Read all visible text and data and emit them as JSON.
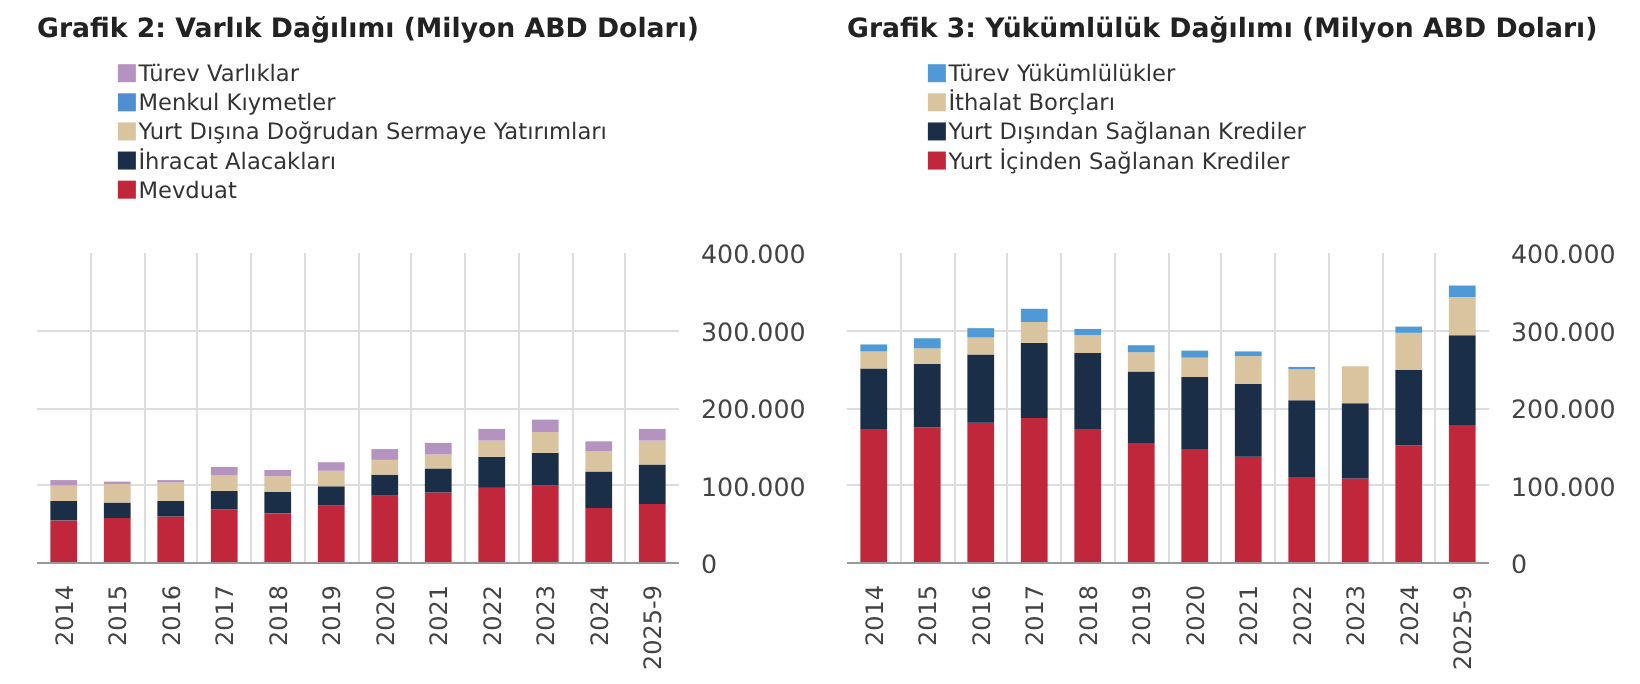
{
  "chart_data": [
    {
      "type": "bar",
      "title": "Grafik 2: Varlık Dağılımı (Milyon ABD Doları)",
      "stacked": true,
      "legend": "top left",
      "grid": true,
      "categories": [
        "2014",
        "2015",
        "2016",
        "2017",
        "2018",
        "2019",
        "2020",
        "2021",
        "2022",
        "2023",
        "2024",
        "2025-9"
      ],
      "ylim": [
        0,
        400000
      ],
      "yticks": [
        {
          "value": 0,
          "label": "0"
        },
        {
          "value": 100000,
          "label": "100.000"
        },
        {
          "value": 200000,
          "label": "200.000"
        },
        {
          "value": 300000,
          "label": "300.000"
        },
        {
          "value": 400000,
          "label": "400.000"
        }
      ],
      "series": [
        {
          "name": "Mevduat",
          "color": "#c0273a",
          "values": [
            55000,
            58000,
            60000,
            69000,
            64000,
            74000,
            87000,
            91000,
            97000,
            100000,
            71000,
            76000
          ]
        },
        {
          "name": "İhracat Alacakları",
          "color": "#1a2e47",
          "values": [
            25000,
            20000,
            20000,
            24000,
            28000,
            25000,
            27000,
            31000,
            40000,
            42000,
            47000,
            51000
          ]
        },
        {
          "name": "Yurt Dışına Doğrudan Sermaye Yatırımları",
          "color": "#d9c49f",
          "values": [
            20000,
            24000,
            24000,
            20000,
            20000,
            20000,
            19000,
            18000,
            21000,
            27000,
            26000,
            31000
          ]
        },
        {
          "name": "Menkul Kıymetler",
          "color": "#4f8fd0",
          "values": [
            null,
            null,
            null,
            null,
            null,
            null,
            null,
            null,
            null,
            null,
            null,
            null
          ]
        },
        {
          "name": "Türev Varlıklar",
          "color": "#b493c0",
          "values": [
            7000,
            3000,
            3000,
            11000,
            8000,
            11000,
            14000,
            15000,
            15000,
            16000,
            13000,
            15000
          ]
        }
      ]
    },
    {
      "type": "bar",
      "title": "Grafik 3: Yükümlülük Dağılımı (Milyon ABD Doları)",
      "stacked": true,
      "legend": "top left",
      "grid": true,
      "categories": [
        "2014",
        "2015",
        "2016",
        "2017",
        "2018",
        "2019",
        "2020",
        "2021",
        "2022",
        "2023",
        "2024",
        "2025-9"
      ],
      "ylim": [
        0,
        400000
      ],
      "yticks": [
        {
          "value": 0,
          "label": "0"
        },
        {
          "value": 100000,
          "label": "100.000"
        },
        {
          "value": 200000,
          "label": "200.000"
        },
        {
          "value": 300000,
          "label": "300.000"
        },
        {
          "value": 400000,
          "label": "400.000"
        }
      ],
      "series": [
        {
          "name": "Yurt İçinden Sağlanan Krediler",
          "color": "#c0273a",
          "values": [
            173000,
            175000,
            181000,
            187000,
            173000,
            155000,
            146000,
            137000,
            111000,
            109000,
            152000,
            178000
          ]
        },
        {
          "name": "Yurt Dışından Sağlanan Krediler",
          "color": "#1a2e47",
          "values": [
            78000,
            82000,
            88000,
            97000,
            98000,
            92000,
            94000,
            94000,
            99000,
            97000,
            97000,
            116000
          ]
        },
        {
          "name": "İthalat Borçları",
          "color": "#d9c49f",
          "values": [
            22000,
            20000,
            22000,
            27000,
            23000,
            25000,
            25000,
            36000,
            40000,
            48000,
            48000,
            49000
          ]
        },
        {
          "name": "Türev Yükümlülükler",
          "color": "#4f9ad6",
          "values": [
            9000,
            13000,
            12000,
            17000,
            8000,
            9000,
            9000,
            6000,
            3000,
            0,
            8000,
            15000
          ]
        }
      ]
    }
  ]
}
